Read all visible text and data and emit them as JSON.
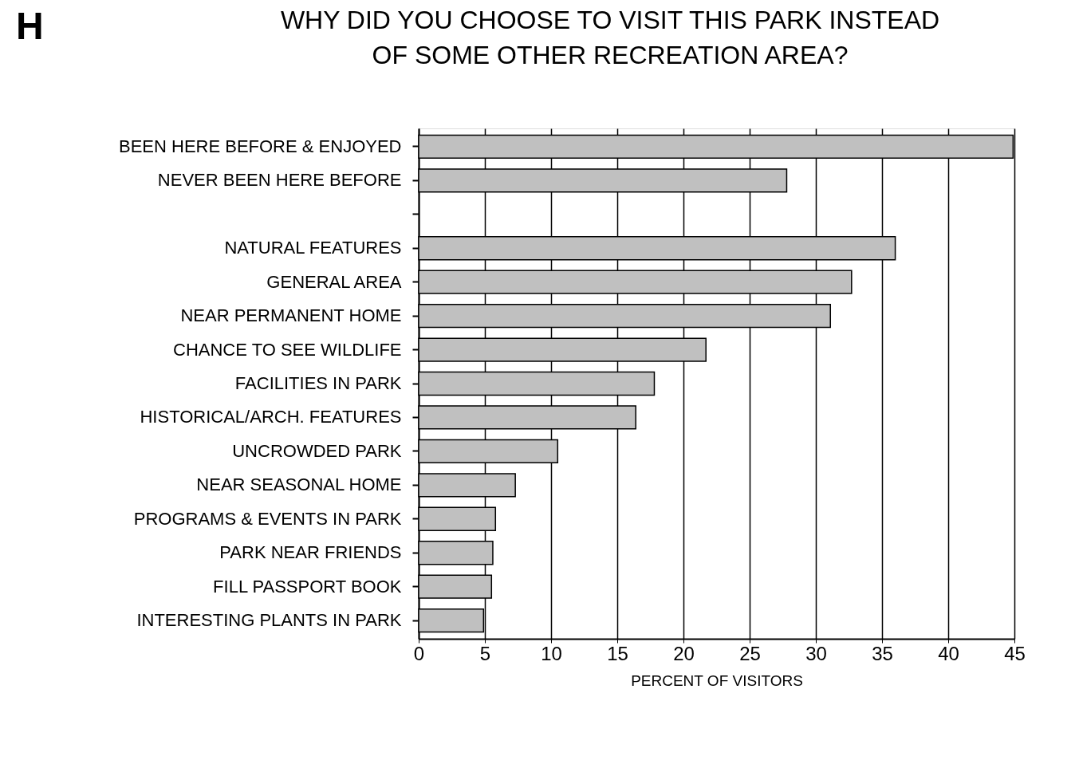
{
  "chart_data": {
    "type": "bar",
    "orientation": "horizontal",
    "title": "WHY DID YOU CHOOSE TO VISIT THIS PARK INSTEAD OF SOME OTHER RECREATION AREA?",
    "xlabel": "PERCENT OF VISITORS",
    "annotations": [
      "H"
    ],
    "categories": [
      "BEEN HERE BEFORE & ENJOYED",
      "NEVER BEEN HERE BEFORE",
      null,
      "NATURAL FEATURES",
      "GENERAL AREA",
      "NEAR PERMANENT HOME",
      "CHANCE TO SEE WILDLIFE",
      "FACILITIES IN PARK",
      "HISTORICAL/ARCH. FEATURES",
      "UNCROWDED PARK",
      "NEAR SEASONAL HOME",
      "PROGRAMS & EVENTS IN PARK",
      "PARK NEAR FRIENDS",
      "FILL PASSPORT BOOK",
      "INTERESTING PLANTS IN PARK"
    ],
    "values": [
      44.9,
      27.8,
      null,
      36.0,
      32.7,
      31.1,
      21.7,
      17.8,
      16.4,
      10.5,
      7.3,
      5.8,
      5.6,
      5.5,
      4.9
    ],
    "color": "#c0c0c0",
    "xlim": [
      0,
      45
    ],
    "xticks": [
      0,
      5,
      10,
      15,
      20,
      25,
      30,
      35,
      40,
      45
    ],
    "grid": "x"
  }
}
